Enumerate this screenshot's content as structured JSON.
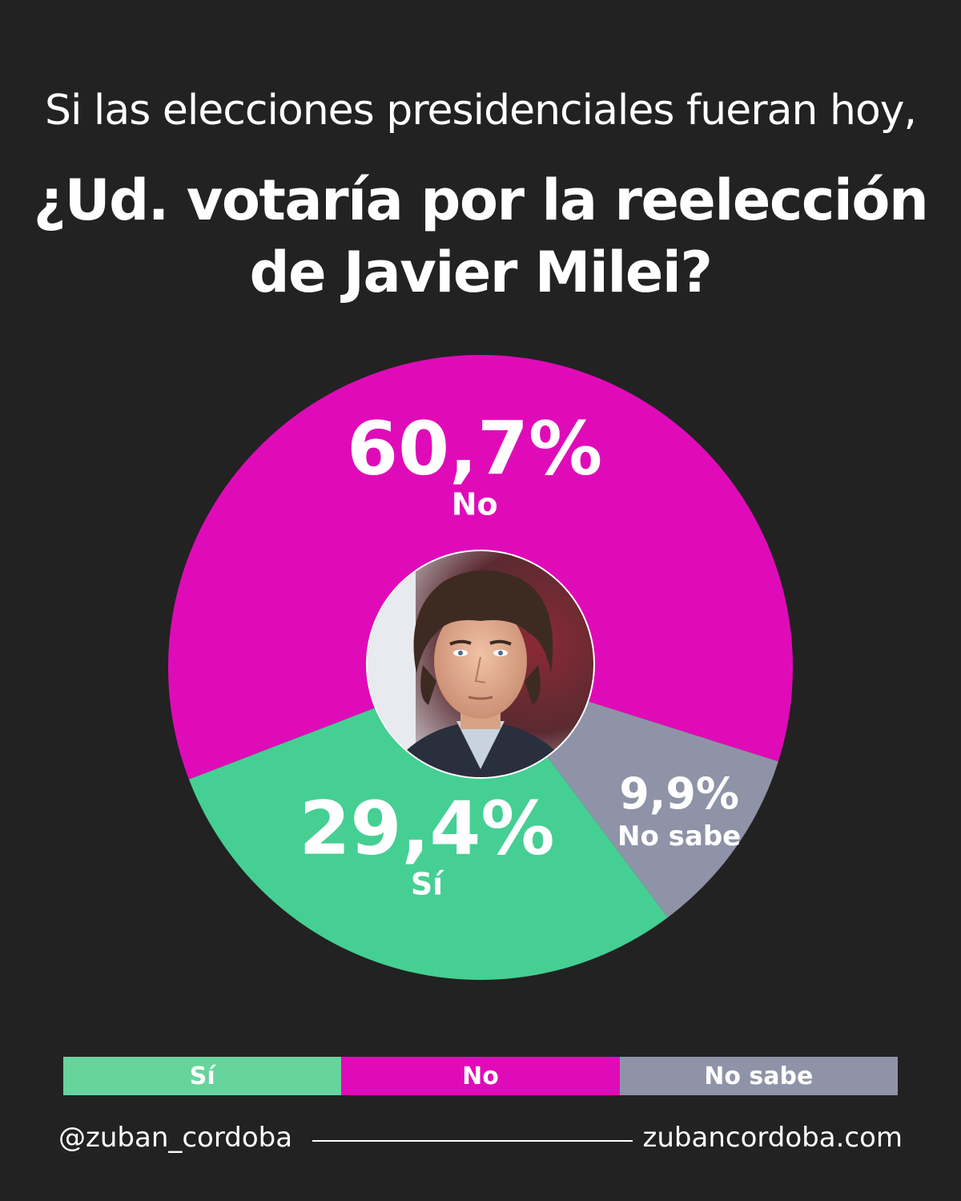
{
  "header": {
    "subtitle": "Si las elecciones presidenciales fueran hoy,",
    "title_line1": "¿Ud. votaría por la reelección",
    "title_line2": "de Javier Milei?"
  },
  "chart_data": {
    "type": "pie",
    "style": "donut",
    "slices": [
      {
        "label": "No",
        "value": 60.7,
        "display": "60,7%",
        "color": "#e00bb8"
      },
      {
        "label": "No sabe",
        "value": 9.9,
        "display": "9,9%",
        "color": "#8f93a8"
      },
      {
        "label": "Sí",
        "value": 29.4,
        "display": "29,4%",
        "color": "#45cf93"
      }
    ],
    "center_image": "portrait-photo",
    "legend": [
      {
        "label": "Sí",
        "color": "#66d49c"
      },
      {
        "label": "No",
        "color": "#e00bb8"
      },
      {
        "label": "No sabe",
        "color": "#8f93a8"
      }
    ],
    "legend_position": "bottom"
  },
  "footer": {
    "handle": "@zuban_cordoba",
    "website": "zubancordoba.com"
  }
}
